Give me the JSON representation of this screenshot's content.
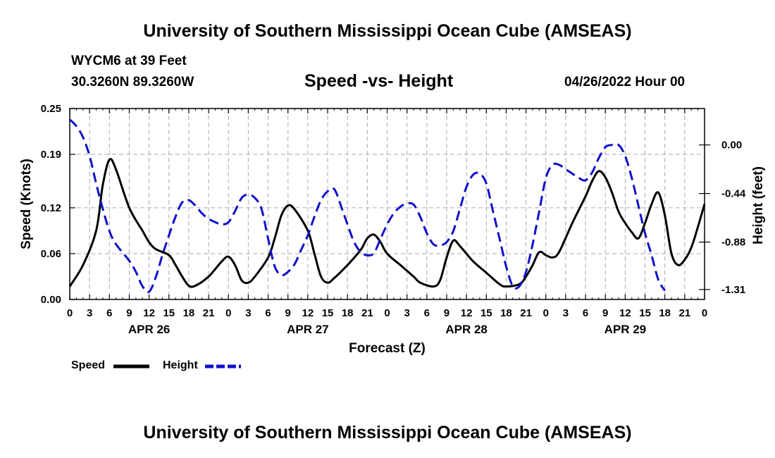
{
  "page": {
    "title_top": "University of Southern Mississippi Ocean Cube (AMSEAS)",
    "station": "WYCM6 at 39 Feet",
    "coords": "30.3260N  89.3260W",
    "subtitle": "Speed -vs- Height",
    "datetime": "04/26/2022 Hour 00",
    "title_bottom": "University of Southern Mississippi Ocean Cube (AMSEAS)"
  },
  "legend": {
    "speed_label": "Speed",
    "height_label": "Height"
  },
  "colors": {
    "speed": "#000000",
    "height": "#1010cc",
    "grid": "#aaaaaa"
  },
  "chart_data": {
    "type": "line",
    "title": "Speed -vs- Height",
    "xlabel": "Forecast (Z)",
    "ylabel_left": "Speed (Knots)",
    "ylabel_right": "Height (feet)",
    "x_range_hours": [
      0,
      96
    ],
    "x_ticks": [
      0,
      3,
      6,
      9,
      12,
      15,
      18,
      21,
      24,
      27,
      30,
      33,
      36,
      39,
      42,
      45,
      48,
      51,
      54,
      57,
      60,
      63,
      66,
      69,
      72,
      75,
      78,
      81,
      84,
      87,
      90,
      93,
      96
    ],
    "x_tick_labels": [
      "0",
      "3",
      "6",
      "9",
      "12",
      "15",
      "18",
      "21",
      "0",
      "3",
      "6",
      "9",
      "12",
      "15",
      "18",
      "21",
      "0",
      "3",
      "6",
      "9",
      "12",
      "15",
      "18",
      "21",
      "0",
      "3",
      "6",
      "9",
      "12",
      "15",
      "18",
      "21",
      "0"
    ],
    "day_labels": [
      {
        "hour": 12,
        "label": "APR 26"
      },
      {
        "hour": 36,
        "label": "APR 27"
      },
      {
        "hour": 60,
        "label": "APR 28"
      },
      {
        "hour": 84,
        "label": "APR 29"
      }
    ],
    "left_axis": {
      "range": [
        0,
        0.25
      ],
      "ticks": [
        0,
        0.06,
        0.12,
        0.19,
        0.25
      ],
      "tick_labels": [
        "0.00",
        "0.06",
        "0.12",
        "0.19",
        "0.25"
      ]
    },
    "right_axis": {
      "range": [
        -1.4,
        0.33
      ],
      "ticks": [
        -1.31,
        -0.88,
        -0.44,
        0.0
      ],
      "tick_labels": [
        "-1.31",
        "-0.88",
        "-0.44",
        "0.00"
      ]
    },
    "series": [
      {
        "name": "Speed",
        "axis": "left",
        "points": [
          [
            0,
            0.017
          ],
          [
            2,
            0.045
          ],
          [
            4,
            0.09
          ],
          [
            5,
            0.15
          ],
          [
            6,
            0.183
          ],
          [
            7,
            0.17
          ],
          [
            9,
            0.12
          ],
          [
            11,
            0.09
          ],
          [
            12,
            0.075
          ],
          [
            13,
            0.066
          ],
          [
            15,
            0.058
          ],
          [
            16,
            0.045
          ],
          [
            17,
            0.03
          ],
          [
            18,
            0.018
          ],
          [
            19,
            0.018
          ],
          [
            21,
            0.03
          ],
          [
            23,
            0.05
          ],
          [
            24,
            0.056
          ],
          [
            25,
            0.045
          ],
          [
            26,
            0.025
          ],
          [
            27,
            0.022
          ],
          [
            28,
            0.03
          ],
          [
            30,
            0.055
          ],
          [
            31,
            0.08
          ],
          [
            32,
            0.11
          ],
          [
            33,
            0.123
          ],
          [
            34,
            0.118
          ],
          [
            36,
            0.09
          ],
          [
            37,
            0.06
          ],
          [
            38,
            0.03
          ],
          [
            39,
            0.022
          ],
          [
            40,
            0.028
          ],
          [
            42,
            0.045
          ],
          [
            44,
            0.065
          ],
          [
            45,
            0.08
          ],
          [
            46,
            0.085
          ],
          [
            47,
            0.075
          ],
          [
            48,
            0.06
          ],
          [
            50,
            0.045
          ],
          [
            52,
            0.03
          ],
          [
            53,
            0.022
          ],
          [
            55,
            0.017
          ],
          [
            56,
            0.025
          ],
          [
            57,
            0.055
          ],
          [
            58,
            0.077
          ],
          [
            59,
            0.07
          ],
          [
            61,
            0.05
          ],
          [
            63,
            0.035
          ],
          [
            65,
            0.02
          ],
          [
            66,
            0.017
          ],
          [
            68,
            0.02
          ],
          [
            69,
            0.03
          ],
          [
            70,
            0.045
          ],
          [
            71,
            0.062
          ],
          [
            72,
            0.058
          ],
          [
            73,
            0.055
          ],
          [
            74,
            0.062
          ],
          [
            76,
            0.1
          ],
          [
            78,
            0.135
          ],
          [
            79,
            0.155
          ],
          [
            80,
            0.168
          ],
          [
            81,
            0.16
          ],
          [
            82,
            0.14
          ],
          [
            83,
            0.115
          ],
          [
            84,
            0.1
          ],
          [
            85,
            0.088
          ],
          [
            86,
            0.08
          ],
          [
            87,
            0.1
          ],
          [
            88,
            0.125
          ],
          [
            89,
            0.14
          ],
          [
            90,
            0.11
          ],
          [
            91,
            0.06
          ],
          [
            92,
            0.045
          ],
          [
            93,
            0.052
          ],
          [
            94,
            0.068
          ],
          [
            95,
            0.095
          ],
          [
            96,
            0.125
          ]
        ]
      },
      {
        "name": "Height",
        "axis": "right",
        "points": [
          [
            0,
            0.23
          ],
          [
            1,
            0.17
          ],
          [
            2,
            0.07
          ],
          [
            3,
            -0.1
          ],
          [
            4,
            -0.35
          ],
          [
            5,
            -0.58
          ],
          [
            6,
            -0.78
          ],
          [
            7,
            -0.9
          ],
          [
            9,
            -1.05
          ],
          [
            10,
            -1.15
          ],
          [
            11,
            -1.28
          ],
          [
            12,
            -1.33
          ],
          [
            13,
            -1.2
          ],
          [
            14,
            -1.0
          ],
          [
            15,
            -0.82
          ],
          [
            16,
            -0.65
          ],
          [
            17,
            -0.52
          ],
          [
            18,
            -0.5
          ],
          [
            19,
            -0.55
          ],
          [
            20,
            -0.62
          ],
          [
            21,
            -0.67
          ],
          [
            22,
            -0.7
          ],
          [
            23,
            -0.72
          ],
          [
            24,
            -0.7
          ],
          [
            25,
            -0.6
          ],
          [
            26,
            -0.48
          ],
          [
            27,
            -0.45
          ],
          [
            28,
            -0.48
          ],
          [
            29,
            -0.58
          ],
          [
            30,
            -0.85
          ],
          [
            31,
            -1.1
          ],
          [
            32,
            -1.18
          ],
          [
            33,
            -1.15
          ],
          [
            34,
            -1.08
          ],
          [
            35,
            -0.95
          ],
          [
            36,
            -0.82
          ],
          [
            37,
            -0.65
          ],
          [
            38,
            -0.5
          ],
          [
            39,
            -0.42
          ],
          [
            40,
            -0.4
          ],
          [
            41,
            -0.55
          ],
          [
            42,
            -0.72
          ],
          [
            43,
            -0.88
          ],
          [
            44,
            -0.97
          ],
          [
            45,
            -1.0
          ],
          [
            46,
            -0.98
          ],
          [
            47,
            -0.85
          ],
          [
            48,
            -0.72
          ],
          [
            49,
            -0.62
          ],
          [
            50,
            -0.56
          ],
          [
            51,
            -0.53
          ],
          [
            52,
            -0.54
          ],
          [
            53,
            -0.65
          ],
          [
            54,
            -0.8
          ],
          [
            55,
            -0.9
          ],
          [
            56,
            -0.91
          ],
          [
            57,
            -0.88
          ],
          [
            58,
            -0.78
          ],
          [
            59,
            -0.58
          ],
          [
            60,
            -0.38
          ],
          [
            61,
            -0.27
          ],
          [
            62,
            -0.26
          ],
          [
            63,
            -0.35
          ],
          [
            64,
            -0.6
          ],
          [
            65,
            -0.85
          ],
          [
            66,
            -1.1
          ],
          [
            67,
            -1.28
          ],
          [
            68,
            -1.28
          ],
          [
            69,
            -1.15
          ],
          [
            70,
            -0.9
          ],
          [
            71,
            -0.6
          ],
          [
            72,
            -0.3
          ],
          [
            73,
            -0.18
          ],
          [
            74,
            -0.18
          ],
          [
            75,
            -0.22
          ],
          [
            76,
            -0.26
          ],
          [
            77,
            -0.3
          ],
          [
            78,
            -0.32
          ],
          [
            79,
            -0.25
          ],
          [
            80,
            -0.12
          ],
          [
            81,
            -0.02
          ],
          [
            82,
            0.0
          ],
          [
            83,
            0.0
          ],
          [
            84,
            -0.1
          ],
          [
            85,
            -0.3
          ],
          [
            86,
            -0.55
          ],
          [
            87,
            -0.8
          ],
          [
            88,
            -1.0
          ],
          [
            89,
            -1.22
          ],
          [
            90,
            -1.32
          ]
        ]
      }
    ],
    "grid": true,
    "legend_position": "bottom-left"
  }
}
